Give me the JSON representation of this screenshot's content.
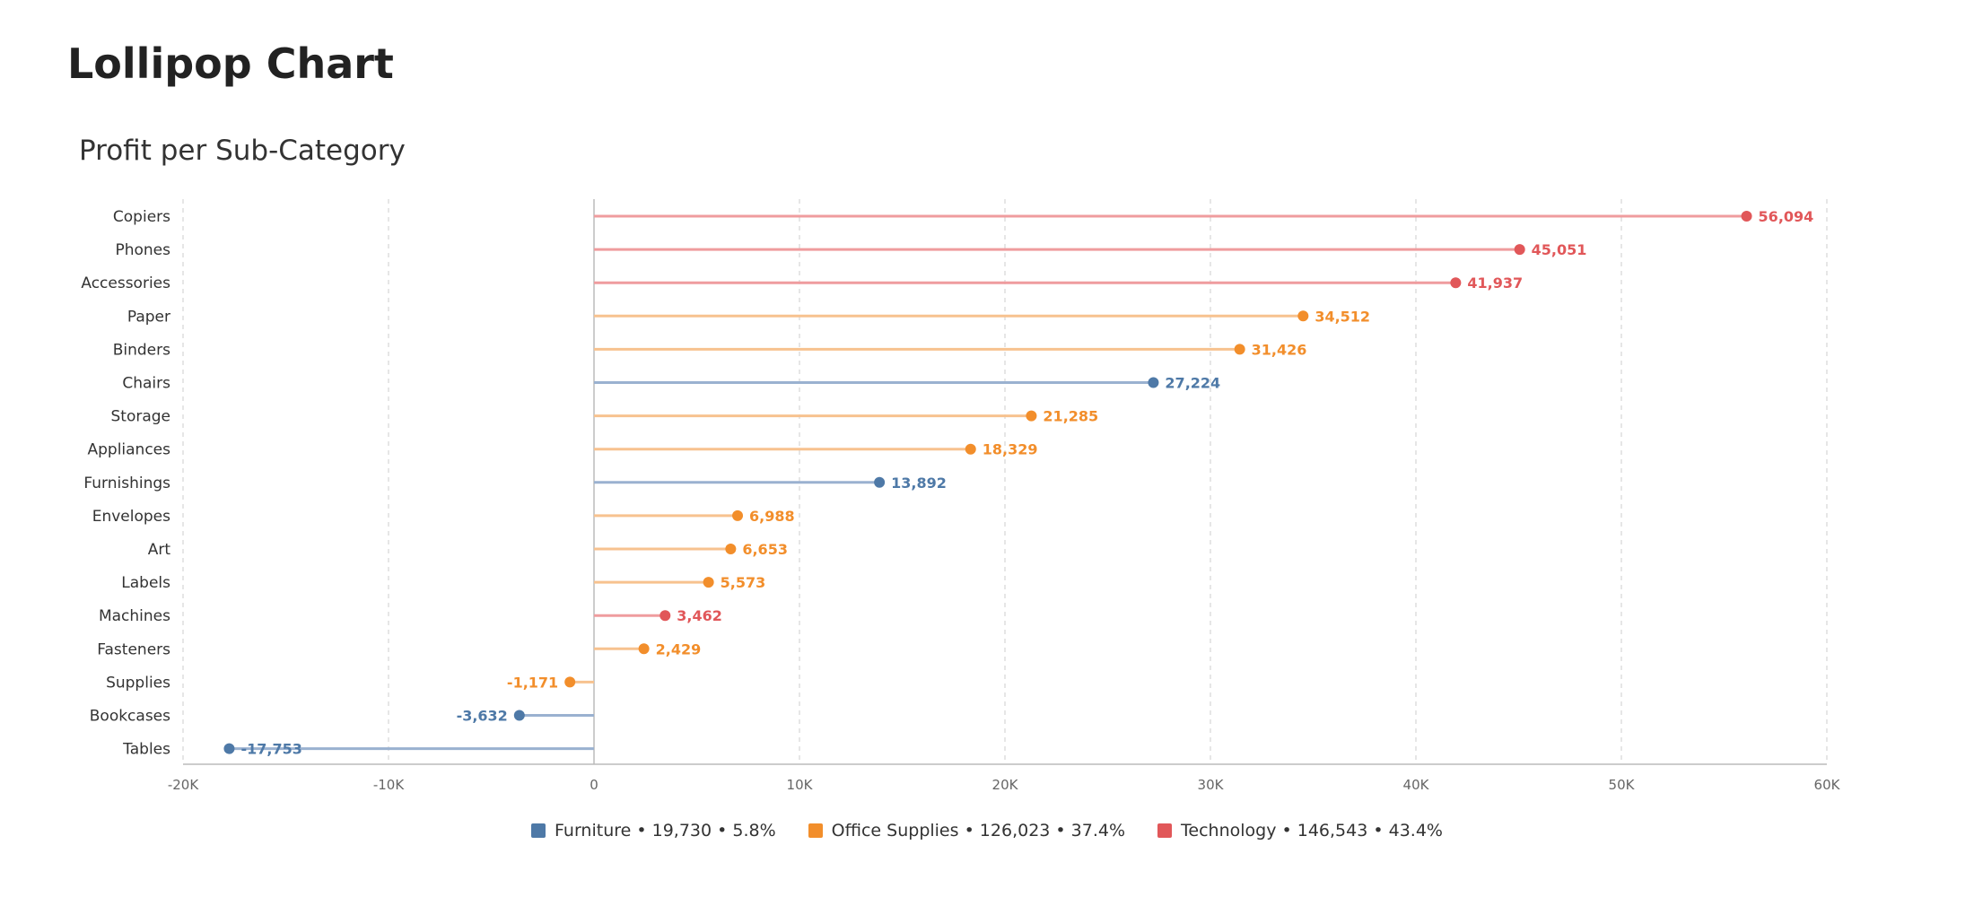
{
  "page": {
    "title": "Lollipop Chart"
  },
  "colors": {
    "Furniture": "#4e79a7",
    "Office Supplies": "#f28e2b",
    "Technology": "#e15759",
    "Furniture_stem": "#9ab1d0",
    "Office Supplies_stem": "#f7c28f",
    "Technology_stem": "#ef9c9e"
  },
  "chart_data": {
    "type": "lollipop",
    "title": "Profit per Sub-Category",
    "xlabel": "",
    "ylabel": "",
    "xlim": [
      -20000,
      60000
    ],
    "x_ticks": [
      -20000,
      -10000,
      0,
      10000,
      20000,
      30000,
      40000,
      50000,
      60000
    ],
    "x_tick_labels": [
      "-20K",
      "-10K",
      "0",
      "10K",
      "20K",
      "30K",
      "40K",
      "50K",
      "60K"
    ],
    "grid": "vertical dashed",
    "legend_position": "bottom-center",
    "categories": [
      "Copiers",
      "Phones",
      "Accessories",
      "Paper",
      "Binders",
      "Chairs",
      "Storage",
      "Appliances",
      "Furnishings",
      "Envelopes",
      "Art",
      "Labels",
      "Machines",
      "Fasteners",
      "Supplies",
      "Bookcases",
      "Tables"
    ],
    "values": [
      56094,
      45051,
      41937,
      34512,
      31426,
      27224,
      21285,
      18329,
      13892,
      6988,
      6653,
      5573,
      3462,
      2429,
      -1171,
      -3632,
      -17753
    ],
    "value_labels": [
      "56,094",
      "45,051",
      "41,937",
      "34,512",
      "31,426",
      "27,224",
      "21,285",
      "18,329",
      "13,892",
      "6,988",
      "6,653",
      "5,573",
      "3,462",
      "2,429",
      "-1,171",
      "-3,632",
      "-17,753"
    ],
    "groups": [
      "Technology",
      "Technology",
      "Technology",
      "Office Supplies",
      "Office Supplies",
      "Furniture",
      "Office Supplies",
      "Office Supplies",
      "Furniture",
      "Office Supplies",
      "Office Supplies",
      "Office Supplies",
      "Technology",
      "Office Supplies",
      "Office Supplies",
      "Furniture",
      "Furniture"
    ],
    "legend": [
      {
        "name": "Furniture",
        "label": "Furniture • 19,730 • 5.8%",
        "total": 19730,
        "pct": 5.8
      },
      {
        "name": "Office Supplies",
        "label": "Office Supplies • 126,023 • 37.4%",
        "total": 126023,
        "pct": 37.4
      },
      {
        "name": "Technology",
        "label": "Technology • 146,543 • 43.4%",
        "total": 146543,
        "pct": 43.4
      }
    ]
  }
}
